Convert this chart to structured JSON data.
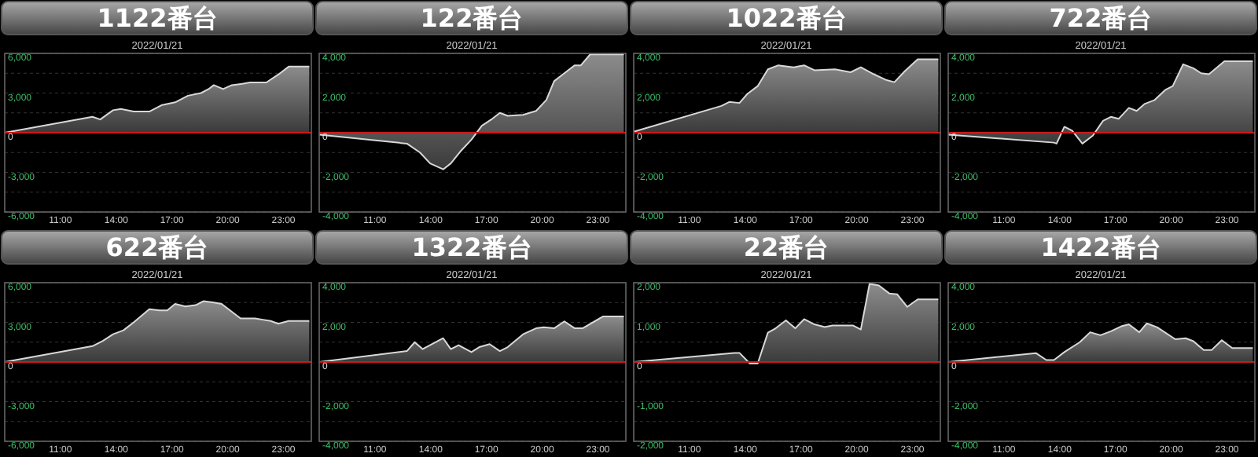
{
  "chart_data": [
    {
      "type": "area",
      "title": "1122番台",
      "subtitle": "2022/01/21",
      "x": [
        8,
        12.72,
        13.14,
        13.83,
        14.25,
        14.94,
        15.78,
        16.47,
        17.17,
        17.86,
        18.56,
        18.97,
        19.25,
        19.75,
        20.22,
        20.78,
        21.19,
        22.08,
        22.72,
        23.28,
        24.39
      ],
      "series": [
        {
          "color": "#d8d8d8",
          "values": [
            0,
            1200,
            1000,
            1700,
            1800,
            1600,
            1600,
            2100,
            2300,
            2800,
            3000,
            3300,
            3600,
            3300,
            3600,
            3700,
            3800,
            3800,
            4400,
            5000,
            5000
          ]
        }
      ],
      "xlim": [
        8,
        24.5
      ],
      "xticks": [
        {
          "value": 11,
          "label": "11:00"
        },
        {
          "value": 14,
          "label": "14:00"
        },
        {
          "value": 17,
          "label": "17:00"
        },
        {
          "value": 20,
          "label": "20:00"
        },
        {
          "value": 23,
          "label": "23:00"
        }
      ],
      "ylim": [
        -6000,
        6000
      ],
      "yticks": [
        {
          "value": -6000,
          "label": "-6,000"
        },
        {
          "value": -4500,
          "label": null
        },
        {
          "value": -3000,
          "label": "-3,000"
        },
        {
          "value": -1500,
          "label": null
        },
        {
          "value": 0,
          "label": "0"
        },
        {
          "value": 1500,
          "label": null
        },
        {
          "value": 3000,
          "label": "3,000"
        },
        {
          "value": 4500,
          "label": null
        },
        {
          "value": 6000,
          "label": "6,000"
        }
      ],
      "grid": "y",
      "ref_lines": [
        {
          "axis": "y",
          "value": 0,
          "color": "#d01818"
        }
      ]
    },
    {
      "type": "area",
      "title": "122番台",
      "subtitle": "2022/01/21",
      "x": [
        8,
        12.72,
        13.42,
        13.97,
        14.67,
        15.08,
        15.64,
        16.19,
        16.75,
        17.31,
        17.72,
        18.14,
        18.97,
        19.67,
        20.22,
        20.64,
        21.19,
        21.75,
        22.08,
        22.58,
        24.39
      ],
      "series": [
        {
          "color": "#d8d8d8",
          "values": [
            -100,
            -550,
            -1000,
            -1550,
            -1850,
            -1550,
            -900,
            -350,
            350,
            700,
            1000,
            850,
            900,
            1100,
            1650,
            2600,
            3000,
            3400,
            3400,
            3950,
            3950
          ]
        }
      ],
      "xlim": [
        8,
        24.5
      ],
      "xticks": [
        {
          "value": 11,
          "label": "11:00"
        },
        {
          "value": 14,
          "label": "14:00"
        },
        {
          "value": 17,
          "label": "17:00"
        },
        {
          "value": 20,
          "label": "20:00"
        },
        {
          "value": 23,
          "label": "23:00"
        }
      ],
      "ylim": [
        -4000,
        4000
      ],
      "yticks": [
        {
          "value": -4000,
          "label": "-4,000"
        },
        {
          "value": -3000,
          "label": null
        },
        {
          "value": -2000,
          "label": "-2,000"
        },
        {
          "value": -1000,
          "label": null
        },
        {
          "value": 0,
          "label": "0"
        },
        {
          "value": 1000,
          "label": null
        },
        {
          "value": 2000,
          "label": "2,000"
        },
        {
          "value": 3000,
          "label": null
        },
        {
          "value": 4000,
          "label": "4,000"
        }
      ],
      "grid": "y",
      "ref_lines": [
        {
          "axis": "y",
          "value": 0,
          "color": "#d01818"
        }
      ]
    },
    {
      "type": "area",
      "title": "1022番台",
      "subtitle": "2022/01/21",
      "x": [
        8,
        12.72,
        13.14,
        13.69,
        14.11,
        14.67,
        15.22,
        15.78,
        16.61,
        17.17,
        17.72,
        18.83,
        19.67,
        20.22,
        20.92,
        21.61,
        22.03,
        22.58,
        23.28,
        24.39
      ],
      "series": [
        {
          "color": "#d8d8d8",
          "values": [
            50,
            1350,
            1550,
            1500,
            1950,
            2350,
            3200,
            3400,
            3300,
            3400,
            3150,
            3200,
            3050,
            3300,
            2950,
            2650,
            2550,
            3100,
            3700,
            3700
          ]
        }
      ],
      "xlim": [
        8,
        24.5
      ],
      "xticks": [
        {
          "value": 11,
          "label": "11:00"
        },
        {
          "value": 14,
          "label": "14:00"
        },
        {
          "value": 17,
          "label": "17:00"
        },
        {
          "value": 20,
          "label": "20:00"
        },
        {
          "value": 23,
          "label": "23:00"
        }
      ],
      "ylim": [
        -4000,
        4000
      ],
      "yticks": [
        {
          "value": -4000,
          "label": "-4,000"
        },
        {
          "value": -3000,
          "label": null
        },
        {
          "value": -2000,
          "label": "-2,000"
        },
        {
          "value": -1000,
          "label": null
        },
        {
          "value": 0,
          "label": "0"
        },
        {
          "value": 1000,
          "label": null
        },
        {
          "value": 2000,
          "label": "2,000"
        },
        {
          "value": 3000,
          "label": null
        },
        {
          "value": 4000,
          "label": "4,000"
        }
      ],
      "grid": "y",
      "ref_lines": [
        {
          "axis": "y",
          "value": 0,
          "color": "#d01818"
        }
      ]
    },
    {
      "type": "area",
      "title": "722番台",
      "subtitle": "2022/01/21",
      "x": [
        8,
        13.69,
        13.83,
        14.25,
        14.67,
        15.22,
        15.78,
        16.33,
        16.75,
        17.17,
        17.72,
        18.14,
        18.56,
        19.11,
        19.67,
        20.08,
        20.64,
        21.19,
        21.61,
        22.03,
        22.86,
        24.39
      ],
      "series": [
        {
          "color": "#d8d8d8",
          "values": [
            -100,
            -500,
            -550,
            300,
            100,
            -550,
            -150,
            600,
            800,
            700,
            1250,
            1100,
            1450,
            1650,
            2150,
            2350,
            3450,
            3250,
            3000,
            2950,
            3600,
            3600
          ]
        }
      ],
      "xlim": [
        8,
        24.5
      ],
      "xticks": [
        {
          "value": 11,
          "label": "11:00"
        },
        {
          "value": 14,
          "label": "14:00"
        },
        {
          "value": 17,
          "label": "17:00"
        },
        {
          "value": 20,
          "label": "20:00"
        },
        {
          "value": 23,
          "label": "23:00"
        }
      ],
      "ylim": [
        -4000,
        4000
      ],
      "yticks": [
        {
          "value": -4000,
          "label": "-4,000"
        },
        {
          "value": -3000,
          "label": null
        },
        {
          "value": -2000,
          "label": "-2,000"
        },
        {
          "value": -1000,
          "label": null
        },
        {
          "value": 0,
          "label": "0"
        },
        {
          "value": 1000,
          "label": null
        },
        {
          "value": 2000,
          "label": "2,000"
        },
        {
          "value": 3000,
          "label": null
        },
        {
          "value": 4000,
          "label": "4,000"
        }
      ],
      "grid": "y",
      "ref_lines": [
        {
          "axis": "y",
          "value": 0,
          "color": "#d01818"
        }
      ]
    },
    {
      "type": "area",
      "title": "622番台",
      "subtitle": "2022/01/21",
      "x": [
        8,
        12.72,
        13.28,
        13.83,
        14.39,
        14.94,
        15.78,
        16.33,
        16.75,
        17.17,
        17.72,
        18.28,
        18.69,
        19.25,
        19.67,
        20.22,
        20.69,
        21.47,
        21.89,
        22.31,
        22.72,
        23.28,
        24.39
      ],
      "series": [
        {
          "color": "#d8d8d8",
          "values": [
            0,
            1200,
            1600,
            2100,
            2400,
            3000,
            4000,
            3900,
            3900,
            4400,
            4200,
            4300,
            4600,
            4500,
            4400,
            3800,
            3300,
            3300,
            3200,
            3100,
            2900,
            3100,
            3100
          ]
        }
      ],
      "xlim": [
        8,
        24.5
      ],
      "xticks": [
        {
          "value": 11,
          "label": "11:00"
        },
        {
          "value": 14,
          "label": "14:00"
        },
        {
          "value": 17,
          "label": "17:00"
        },
        {
          "value": 20,
          "label": "20:00"
        },
        {
          "value": 23,
          "label": "23:00"
        }
      ],
      "ylim": [
        -6000,
        6000
      ],
      "yticks": [
        {
          "value": -6000,
          "label": "-6,000"
        },
        {
          "value": -4500,
          "label": null
        },
        {
          "value": -3000,
          "label": "-3,000"
        },
        {
          "value": -1500,
          "label": null
        },
        {
          "value": 0,
          "label": "0"
        },
        {
          "value": 1500,
          "label": null
        },
        {
          "value": 3000,
          "label": "3,000"
        },
        {
          "value": 4500,
          "label": null
        },
        {
          "value": 6000,
          "label": "6,000"
        }
      ],
      "grid": "y",
      "ref_lines": [
        {
          "axis": "y",
          "value": 0,
          "color": "#d01818"
        }
      ]
    },
    {
      "type": "area",
      "title": "1322番台",
      "subtitle": "2022/01/21",
      "x": [
        8,
        12.72,
        13.14,
        13.56,
        14.67,
        15.08,
        15.5,
        16.19,
        16.61,
        17.17,
        17.72,
        18.14,
        18.97,
        19.67,
        20.08,
        20.64,
        21.19,
        21.75,
        22.17,
        23.28,
        24.39
      ],
      "series": [
        {
          "color": "#d8d8d8",
          "values": [
            0,
            550,
            1000,
            650,
            1200,
            650,
            850,
            500,
            750,
            900,
            550,
            750,
            1400,
            1700,
            1750,
            1700,
            2050,
            1700,
            1700,
            2300,
            2300
          ]
        }
      ],
      "xlim": [
        8,
        24.5
      ],
      "xticks": [
        {
          "value": 11,
          "label": "11:00"
        },
        {
          "value": 14,
          "label": "14:00"
        },
        {
          "value": 17,
          "label": "17:00"
        },
        {
          "value": 20,
          "label": "20:00"
        },
        {
          "value": 23,
          "label": "23:00"
        }
      ],
      "ylim": [
        -4000,
        4000
      ],
      "yticks": [
        {
          "value": -4000,
          "label": "-4,000"
        },
        {
          "value": -3000,
          "label": null
        },
        {
          "value": -2000,
          "label": "-2,000"
        },
        {
          "value": -1000,
          "label": null
        },
        {
          "value": 0,
          "label": "0"
        },
        {
          "value": 1000,
          "label": null
        },
        {
          "value": 2000,
          "label": "2,000"
        },
        {
          "value": 3000,
          "label": null
        },
        {
          "value": 4000,
          "label": "4,000"
        }
      ],
      "grid": "y",
      "ref_lines": [
        {
          "axis": "y",
          "value": 0,
          "color": "#d01818"
        }
      ]
    },
    {
      "type": "area",
      "title": "22番台",
      "subtitle": "2022/01/21",
      "x": [
        8,
        13.42,
        13.69,
        14.25,
        14.67,
        15.22,
        15.64,
        16.19,
        16.69,
        17.17,
        17.72,
        18.28,
        18.69,
        19.81,
        20.22,
        20.69,
        21.19,
        21.75,
        22.17,
        22.72,
        23.28,
        24.39
      ],
      "series": [
        {
          "color": "#d8d8d8",
          "values": [
            0,
            230,
            230,
            -40,
            -40,
            740,
            850,
            1050,
            850,
            1080,
            950,
            880,
            920,
            920,
            820,
            1970,
            1930,
            1730,
            1710,
            1390,
            1580,
            1580
          ]
        }
      ],
      "xlim": [
        8,
        24.5
      ],
      "xticks": [
        {
          "value": 11,
          "label": "11:00"
        },
        {
          "value": 14,
          "label": "14:00"
        },
        {
          "value": 17,
          "label": "17:00"
        },
        {
          "value": 20,
          "label": "20:00"
        },
        {
          "value": 23,
          "label": "23:00"
        }
      ],
      "ylim": [
        -2000,
        2000
      ],
      "yticks": [
        {
          "value": -2000,
          "label": "-2,000"
        },
        {
          "value": -1500,
          "label": null
        },
        {
          "value": -1000,
          "label": "-1,000"
        },
        {
          "value": -500,
          "label": null
        },
        {
          "value": 0,
          "label": "0"
        },
        {
          "value": 500,
          "label": null
        },
        {
          "value": 1000,
          "label": "1,000"
        },
        {
          "value": 1500,
          "label": null
        },
        {
          "value": 2000,
          "label": "2,000"
        }
      ],
      "grid": "y",
      "ref_lines": [
        {
          "axis": "y",
          "value": 0,
          "color": "#d01818"
        }
      ]
    },
    {
      "type": "area",
      "title": "1422番台",
      "subtitle": "2022/01/21",
      "x": [
        8,
        12.72,
        13.28,
        13.69,
        14.25,
        15.08,
        15.64,
        16.19,
        16.75,
        17.31,
        17.72,
        18.28,
        18.69,
        19.25,
        20.22,
        20.78,
        21.19,
        21.75,
        22.17,
        22.72,
        23.28,
        24.39
      ],
      "series": [
        {
          "color": "#d8d8d8",
          "values": [
            0,
            450,
            100,
            100,
            500,
            1000,
            1500,
            1350,
            1550,
            1800,
            1900,
            1500,
            1950,
            1750,
            1150,
            1200,
            1050,
            600,
            600,
            1100,
            700,
            700
          ]
        }
      ],
      "xlim": [
        8,
        24.5
      ],
      "xticks": [
        {
          "value": 11,
          "label": "11:00"
        },
        {
          "value": 14,
          "label": "14:00"
        },
        {
          "value": 17,
          "label": "17:00"
        },
        {
          "value": 20,
          "label": "20:00"
        },
        {
          "value": 23,
          "label": "23:00"
        }
      ],
      "ylim": [
        -4000,
        4000
      ],
      "yticks": [
        {
          "value": -4000,
          "label": "-4,000"
        },
        {
          "value": -3000,
          "label": null
        },
        {
          "value": -2000,
          "label": "-2,000"
        },
        {
          "value": -1000,
          "label": null
        },
        {
          "value": 0,
          "label": "0"
        },
        {
          "value": 1000,
          "label": null
        },
        {
          "value": 2000,
          "label": "2,000"
        },
        {
          "value": 3000,
          "label": null
        },
        {
          "value": 4000,
          "label": "4,000"
        }
      ],
      "grid": "y",
      "ref_lines": [
        {
          "axis": "y",
          "value": 0,
          "color": "#d01818"
        }
      ]
    }
  ]
}
